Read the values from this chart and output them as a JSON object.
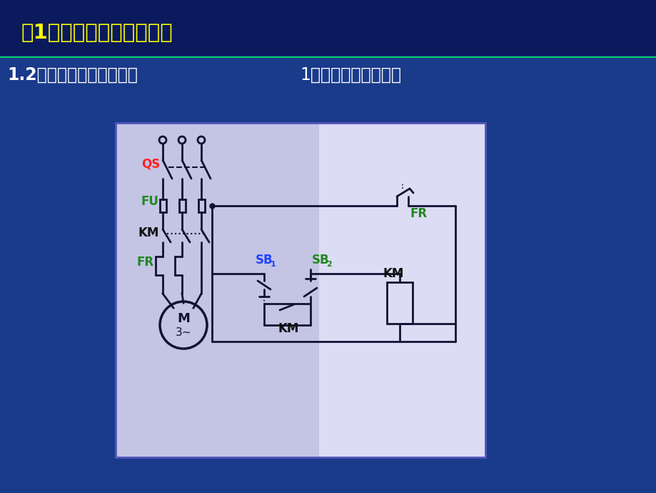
{
  "bg_color": "#1a3a8a",
  "header_bg": "#0a1a5c",
  "title_text": "第1章：常用电气控制基础",
  "title_color": "#ffff00",
  "subtitle_left": "1.2电气控制系统基本环节",
  "subtitle_right": "1）电路图及绘制原则",
  "subtitle_color": "#ffffff",
  "divider_color": "#00cc66",
  "label_QS": "QS",
  "label_FU": "FU",
  "label_KM": "KM",
  "label_FR": "FR",
  "label_SB1": "SB",
  "label_SB2": "SB",
  "label_M": "M",
  "label_M3": "3~",
  "color_QS": "#ff2222",
  "color_FU": "#228822",
  "color_FR": "#228822",
  "color_SB1": "#2244ff",
  "color_SB2": "#228822",
  "color_KM": "#111111",
  "color_lines": "#111133"
}
